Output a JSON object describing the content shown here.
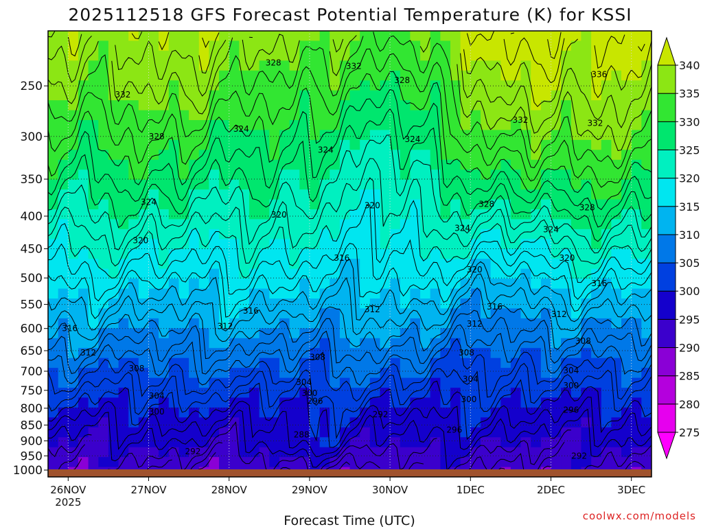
{
  "chart_data": {
    "type": "heatmap",
    "title": "2025112518 GFS Forecast Potential Temperature (K) for KSSI",
    "xlabel": "Forecast Time (UTC)",
    "ylabel": "",
    "credit": "coolwx.com/models",
    "y_scale": "log",
    "y_inverted": true,
    "ylim": [
      1025,
      205
    ],
    "y_ticks": [
      250,
      300,
      350,
      400,
      450,
      500,
      550,
      600,
      650,
      700,
      750,
      800,
      850,
      900,
      950,
      1000
    ],
    "xlim": [
      -0.25,
      7.25
    ],
    "x_tick_labels": [
      "26NOV",
      "27NOV",
      "28NOV",
      "29NOV",
      "30NOV",
      "1DEC",
      "2DEC",
      "3DEC"
    ],
    "x_tick_sublabel": "2025",
    "grid": true,
    "colorbar": {
      "levels": [
        275,
        280,
        285,
        290,
        295,
        300,
        305,
        310,
        315,
        320,
        325,
        330,
        335,
        340
      ],
      "colors": [
        "#ff00ff",
        "#e600ee",
        "#b400dd",
        "#8a00d6",
        "#3b00cc",
        "#1400cc",
        "#0040e0",
        "#0078e8",
        "#00b4f0",
        "#00e6f0",
        "#00f0c0",
        "#00e66e",
        "#32e632",
        "#8ce614",
        "#c8e600"
      ]
    },
    "contour_labels": [
      {
        "value": 328,
        "x": 2.55,
        "p": 230
      },
      {
        "value": 332,
        "x": 3.55,
        "p": 233
      },
      {
        "value": 328,
        "x": 4.15,
        "p": 245
      },
      {
        "value": 336,
        "x": 6.6,
        "p": 240
      },
      {
        "value": 332,
        "x": 0.68,
        "p": 258
      },
      {
        "value": 332,
        "x": 5.62,
        "p": 283
      },
      {
        "value": 332,
        "x": 6.55,
        "p": 286
      },
      {
        "value": 328,
        "x": 1.1,
        "p": 300
      },
      {
        "value": 324,
        "x": 2.15,
        "p": 292
      },
      {
        "value": 324,
        "x": 3.2,
        "p": 315
      },
      {
        "value": 324,
        "x": 4.28,
        "p": 303
      },
      {
        "value": 324,
        "x": 1.0,
        "p": 380
      },
      {
        "value": 328,
        "x": 5.2,
        "p": 383
      },
      {
        "value": 328,
        "x": 6.45,
        "p": 388
      },
      {
        "value": 320,
        "x": 2.62,
        "p": 398
      },
      {
        "value": 320,
        "x": 3.78,
        "p": 385
      },
      {
        "value": 324,
        "x": 4.9,
        "p": 418
      },
      {
        "value": 324,
        "x": 6.0,
        "p": 420
      },
      {
        "value": 320,
        "x": 0.9,
        "p": 437
      },
      {
        "value": 316,
        "x": 3.4,
        "p": 465
      },
      {
        "value": 320,
        "x": 5.05,
        "p": 485
      },
      {
        "value": 320,
        "x": 6.2,
        "p": 465
      },
      {
        "value": 316,
        "x": 6.6,
        "p": 510
      },
      {
        "value": 316,
        "x": 2.27,
        "p": 563
      },
      {
        "value": 312,
        "x": 3.78,
        "p": 560
      },
      {
        "value": 316,
        "x": 5.3,
        "p": 555
      },
      {
        "value": 312,
        "x": 5.05,
        "p": 590
      },
      {
        "value": 312,
        "x": 6.1,
        "p": 570
      },
      {
        "value": 316,
        "x": 0.02,
        "p": 600
      },
      {
        "value": 312,
        "x": 1.95,
        "p": 595
      },
      {
        "value": 308,
        "x": 6.4,
        "p": 628
      },
      {
        "value": 312,
        "x": 0.25,
        "p": 655
      },
      {
        "value": 308,
        "x": 3.1,
        "p": 665
      },
      {
        "value": 308,
        "x": 4.95,
        "p": 655
      },
      {
        "value": 308,
        "x": 0.85,
        "p": 693
      },
      {
        "value": 304,
        "x": 6.25,
        "p": 698
      },
      {
        "value": 304,
        "x": 5.0,
        "p": 720
      },
      {
        "value": 304,
        "x": 2.93,
        "p": 728
      },
      {
        "value": 300,
        "x": 6.25,
        "p": 737
      },
      {
        "value": 300,
        "x": 3.0,
        "p": 758
      },
      {
        "value": 304,
        "x": 1.1,
        "p": 765
      },
      {
        "value": 296,
        "x": 3.07,
        "p": 780
      },
      {
        "value": 300,
        "x": 4.98,
        "p": 775
      },
      {
        "value": 296,
        "x": 6.25,
        "p": 805
      },
      {
        "value": 300,
        "x": 1.1,
        "p": 810
      },
      {
        "value": 292,
        "x": 3.88,
        "p": 818
      },
      {
        "value": 296,
        "x": 4.8,
        "p": 865
      },
      {
        "value": 288,
        "x": 2.9,
        "p": 880
      },
      {
        "value": 292,
        "x": 1.55,
        "p": 935
      },
      {
        "value": 292,
        "x": 6.35,
        "p": 950
      }
    ]
  }
}
